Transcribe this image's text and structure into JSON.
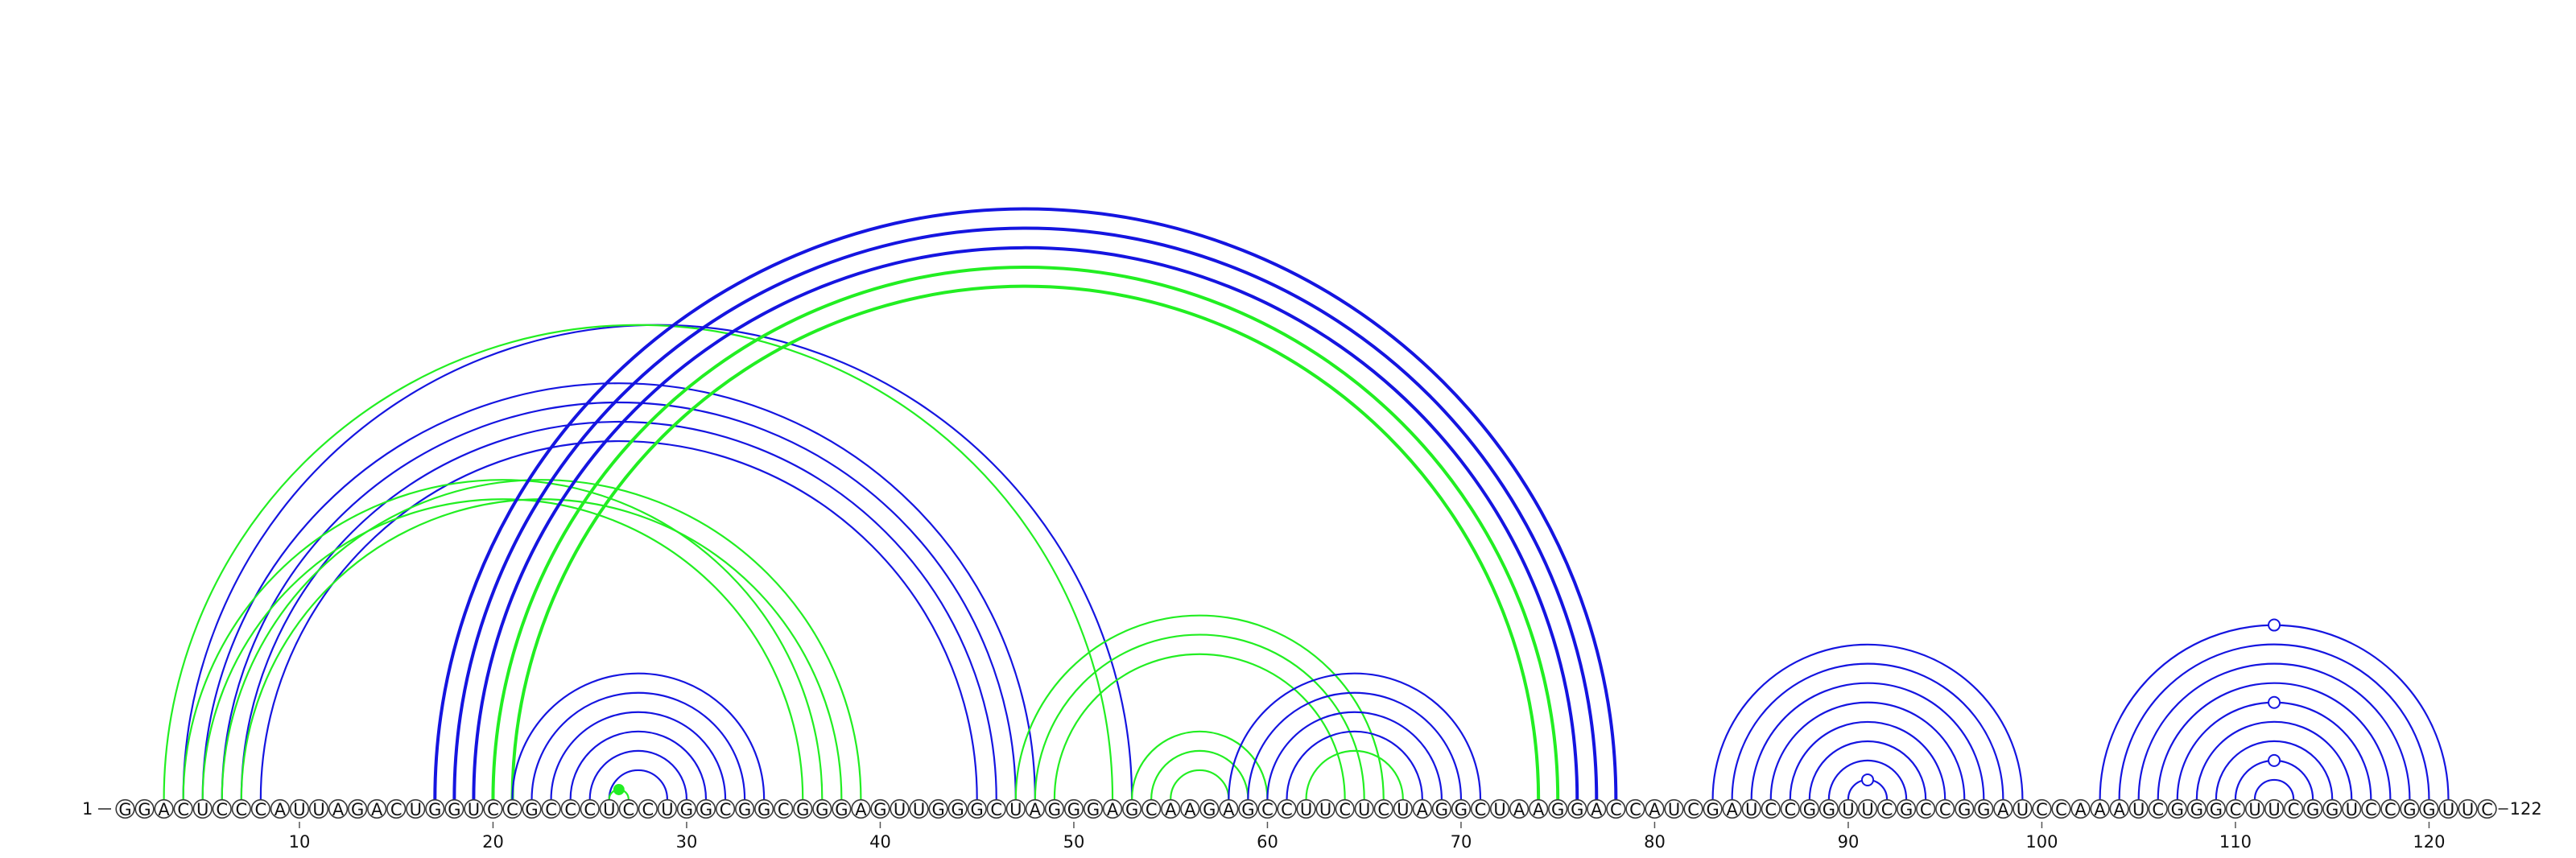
{
  "sequence": "GGACUCCCAUUAGACUGGUCCGCCCUCCUGGCGGCGGGAGUUGGGCUAGGGAGCAAGAGCCUUCUCUAGGCUAAGGACCAUCGAUCCGGUUCGCCGGAUCCAAAUCGGGCUUCGGUCCGGUUC",
  "start_label": "1",
  "end_label": "122",
  "ticks": [
    10,
    20,
    30,
    40,
    50,
    60,
    70,
    80,
    90,
    100,
    110,
    120
  ],
  "colors": {
    "blue": "#1515e0",
    "green": "#22ee22"
  },
  "arcs": [
    {
      "i": 5,
      "j": 48,
      "color": "blue",
      "weight": 1
    },
    {
      "i": 6,
      "j": 47,
      "color": "blue",
      "weight": 1
    },
    {
      "i": 7,
      "j": 46,
      "color": "blue",
      "weight": 1
    },
    {
      "i": 8,
      "j": 45,
      "color": "blue",
      "weight": 1
    },
    {
      "i": 4,
      "j": 53,
      "color": "blue",
      "weight": 1
    },
    {
      "i": 3,
      "j": 52,
      "color": "green",
      "weight": 1
    },
    {
      "i": 4,
      "j": 37,
      "color": "green",
      "weight": 1
    },
    {
      "i": 5,
      "j": 36,
      "color": "green",
      "weight": 1
    },
    {
      "i": 6,
      "j": 39,
      "color": "green",
      "weight": 1
    },
    {
      "i": 7,
      "j": 38,
      "color": "green",
      "weight": 1
    },
    {
      "i": 17,
      "j": 78,
      "color": "blue",
      "weight": 2
    },
    {
      "i": 18,
      "j": 77,
      "color": "blue",
      "weight": 2
    },
    {
      "i": 19,
      "j": 76,
      "color": "blue",
      "weight": 2
    },
    {
      "i": 20,
      "j": 75,
      "color": "green",
      "weight": 2
    },
    {
      "i": 21,
      "j": 74,
      "color": "green",
      "weight": 2
    },
    {
      "i": 21,
      "j": 34,
      "color": "blue",
      "weight": 1
    },
    {
      "i": 22,
      "j": 33,
      "color": "blue",
      "weight": 1
    },
    {
      "i": 23,
      "j": 32,
      "color": "blue",
      "weight": 1
    },
    {
      "i": 24,
      "j": 31,
      "color": "blue",
      "weight": 1
    },
    {
      "i": 25,
      "j": 30,
      "color": "blue",
      "weight": 1
    },
    {
      "i": 26,
      "j": 29,
      "color": "blue",
      "weight": 1
    },
    {
      "i": 26,
      "j": 27,
      "color": "green",
      "weight": 1,
      "marker": "green"
    },
    {
      "i": 47,
      "j": 66,
      "color": "green",
      "weight": 1
    },
    {
      "i": 48,
      "j": 65,
      "color": "green",
      "weight": 1
    },
    {
      "i": 49,
      "j": 64,
      "color": "green",
      "weight": 1
    },
    {
      "i": 53,
      "j": 60,
      "color": "green",
      "weight": 1
    },
    {
      "i": 54,
      "j": 59,
      "color": "green",
      "weight": 1
    },
    {
      "i": 55,
      "j": 58,
      "color": "green",
      "weight": 1
    },
    {
      "i": 58,
      "j": 71,
      "color": "blue",
      "weight": 1
    },
    {
      "i": 59,
      "j": 70,
      "color": "blue",
      "weight": 1
    },
    {
      "i": 60,
      "j": 69,
      "color": "blue",
      "weight": 1
    },
    {
      "i": 61,
      "j": 68,
      "color": "blue",
      "weight": 1
    },
    {
      "i": 62,
      "j": 67,
      "color": "green",
      "weight": 1
    },
    {
      "i": 83,
      "j": 99,
      "color": "blue",
      "weight": 1
    },
    {
      "i": 84,
      "j": 98,
      "color": "blue",
      "weight": 1
    },
    {
      "i": 85,
      "j": 97,
      "color": "blue",
      "weight": 1
    },
    {
      "i": 86,
      "j": 96,
      "color": "blue",
      "weight": 1
    },
    {
      "i": 87,
      "j": 95,
      "color": "blue",
      "weight": 1
    },
    {
      "i": 88,
      "j": 94,
      "color": "blue",
      "weight": 1
    },
    {
      "i": 89,
      "j": 93,
      "color": "blue",
      "weight": 1
    },
    {
      "i": 90,
      "j": 92,
      "color": "blue",
      "weight": 1,
      "marker": "open"
    },
    {
      "i": 103,
      "j": 121,
      "color": "blue",
      "weight": 1,
      "marker": "open"
    },
    {
      "i": 104,
      "j": 120,
      "color": "blue",
      "weight": 1
    },
    {
      "i": 105,
      "j": 119,
      "color": "blue",
      "weight": 1
    },
    {
      "i": 106,
      "j": 118,
      "color": "blue",
      "weight": 1
    },
    {
      "i": 107,
      "j": 117,
      "color": "blue",
      "weight": 1,
      "marker": "open"
    },
    {
      "i": 108,
      "j": 116,
      "color": "blue",
      "weight": 1
    },
    {
      "i": 109,
      "j": 115,
      "color": "blue",
      "weight": 1
    },
    {
      "i": 110,
      "j": 114,
      "color": "blue",
      "weight": 1,
      "marker": "open"
    },
    {
      "i": 111,
      "j": 113,
      "color": "blue",
      "weight": 1
    }
  ]
}
